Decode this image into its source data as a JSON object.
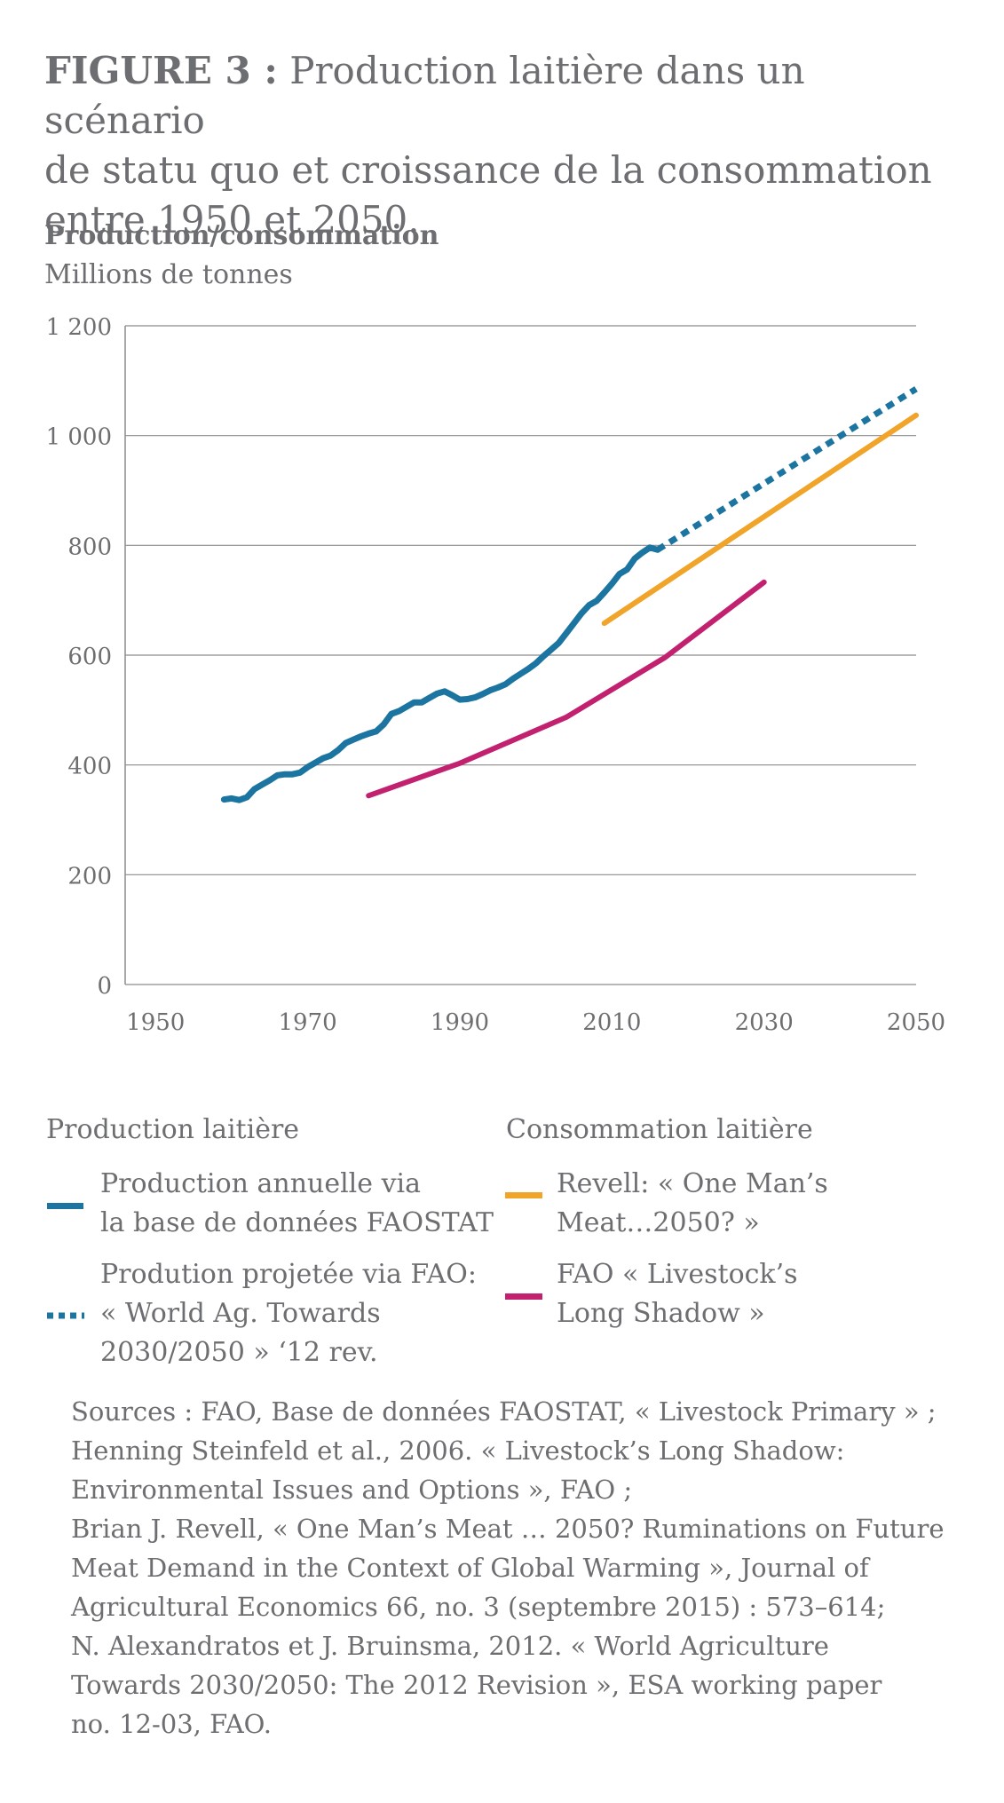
{
  "title": {
    "figure_label": "FIGURE 3 :",
    "line1": "Production laitière dans un scénario",
    "line2": "de statu quo et croissance de la consommation",
    "line3": "entre 1950 et 2050."
  },
  "axis": {
    "ylabel": "Production/consommation",
    "yunit": "Millions de tonnes"
  },
  "colors": {
    "production": "#1b75a0",
    "projection": "#1b75a0",
    "revell": "#f0a42a",
    "fao_shadow": "#c2216f",
    "grid": "#8c8c8c",
    "text": "#6d6e71"
  },
  "chart_data": {
    "type": "line",
    "xlim": [
      1946,
      2050
    ],
    "ylim": [
      0,
      1200
    ],
    "x_ticks": [
      "1950",
      "1970",
      "1990",
      "2010",
      "2030",
      "2050"
    ],
    "x_tick_values": [
      1950,
      1970,
      1990,
      2010,
      2030,
      2050
    ],
    "y_ticks": [
      "0",
      "200",
      "400",
      "600",
      "800",
      "1 000",
      "1 200"
    ],
    "y_tick_values": [
      0,
      200,
      400,
      600,
      800,
      1000,
      1200
    ],
    "grid": "horizontal",
    "series": [
      {
        "key": "production",
        "name": "Production annuelle via la base de données FAOSTAT",
        "style": "solid",
        "x": [
          1959,
          1960,
          1961,
          1962,
          1963,
          1964,
          1965,
          1966,
          1967,
          1968,
          1969,
          1970,
          1971,
          1972,
          1973,
          1974,
          1975,
          1976,
          1977,
          1978,
          1979,
          1980,
          1981,
          1982,
          1983,
          1984,
          1985,
          1986,
          1987,
          1988,
          1989,
          1990,
          1991,
          1992,
          1993,
          1994,
          1995,
          1996,
          1997,
          1998,
          1999,
          2000,
          2001,
          2002,
          2003,
          2004,
          2005,
          2006,
          2007,
          2008,
          2009,
          2010,
          2011,
          2012,
          2013,
          2014,
          2015,
          2016
        ],
        "y": [
          337,
          339,
          336,
          341,
          356,
          364,
          372,
          381,
          383,
          383,
          386,
          396,
          404,
          412,
          417,
          427,
          440,
          446,
          452,
          457,
          461,
          474,
          493,
          498,
          506,
          514,
          514,
          522,
          530,
          534,
          527,
          519,
          520,
          523,
          529,
          536,
          541,
          547,
          557,
          566,
          575,
          585,
          598,
          610,
          622,
          640,
          658,
          676,
          691,
          699,
          714,
          730,
          748,
          756,
          776,
          787,
          796,
          792
        ],
        "y_note": ""
      },
      {
        "key": "projection",
        "name": "Prodution projetée via FAO: « World Ag. Towards 2030/2050 » ‘12 rev.",
        "style": "dotted",
        "x": [
          2016,
          2050
        ],
        "y": [
          792,
          1085
        ]
      },
      {
        "key": "revell",
        "name": "Revell: « One Man’s Meat…2050? »",
        "style": "solid",
        "x": [
          2009,
          2050
        ],
        "y": [
          658,
          1037
        ]
      },
      {
        "key": "fao_shadow",
        "name": "FAO « Livestock’s Long Shadow »",
        "style": "solid",
        "x": [
          1978,
          1990,
          2004,
          2017,
          2030
        ],
        "y": [
          344,
          403,
          487,
          596,
          733
        ]
      }
    ]
  },
  "legend": {
    "production_heading": "Production laitière",
    "consumption_heading": "Consommation laitière",
    "prod_annual_line1": "Production annuelle via",
    "prod_annual_line2": "la base de données FAOSTAT",
    "prod_proj_line1": "Prodution projetée via FAO:",
    "prod_proj_line2": "« World Ag. Towards",
    "prod_proj_line3": "2030/2050 » ‘12 rev.",
    "revell_line1": "Revell: « One Man’s",
    "revell_line2": "Meat…2050? »",
    "fao_line1": "FAO « Livestock’s",
    "fao_line2": "Long Shadow »"
  },
  "sources": [
    "Sources : FAO, Base de données FAOSTAT, « Livestock Primary » ;",
    "Henning Steinfeld et al., 2006. « Livestock’s Long Shadow:",
    "Environmental Issues and Options », FAO ;",
    "Brian J. Revell, « One Man’s Meat … 2050? Ruminations on Future",
    "Meat Demand in the Context of Global Warming », Journal of",
    "Agricultural Economics 66, no. 3 (septembre 2015) : 573–614;",
    "N. Alexandratos et J. Bruinsma, 2012. « World Agriculture",
    "Towards 2030/2050: The 2012 Revision », ESA working paper",
    "no. 12-03, FAO."
  ]
}
